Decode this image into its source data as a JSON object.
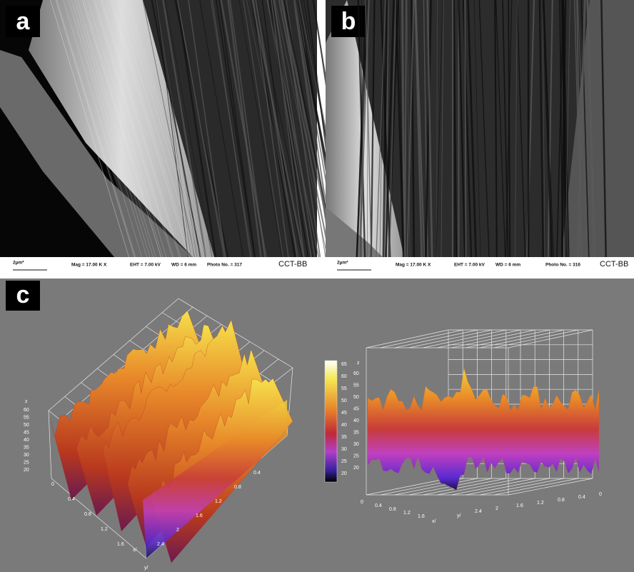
{
  "panels": [
    {
      "label": "a",
      "scale_bar": "2µm*",
      "mag": "Mag = 17.00 K X",
      "eht": "EHT = 7.00 kV",
      "wd": "WD =  6 mm",
      "photo": "Photo No. = 317",
      "lab": "CCT-BB"
    },
    {
      "label": "b",
      "scale_bar": "2µm*",
      "mag": "Mag = 17.00 K X",
      "eht": "EHT = 7.00 kV",
      "wd": "WD =  6 mm",
      "photo": "Photo No. = 316",
      "lab": "CCT-BB"
    }
  ],
  "panel_c": {
    "label": "c",
    "colorbar_ticks": [
      65,
      60,
      55,
      50,
      45,
      40,
      35,
      30,
      25,
      20
    ],
    "left_plot": {
      "z_label": "z",
      "z_ticks": [
        60,
        55,
        50,
        45,
        40,
        35,
        30,
        25,
        20
      ],
      "x_ticks": [
        "0",
        "0.4",
        "0.8",
        "1.2",
        "1.6"
      ],
      "x_label": "x/",
      "y_ticks": [
        "0.4",
        "0.8",
        "1.2",
        "1.6",
        "2",
        "2.4"
      ],
      "y_label": "y/"
    },
    "right_plot": {
      "z_label": "z",
      "z_ticks": [
        60,
        55,
        50,
        45,
        40,
        35,
        30,
        25,
        20
      ],
      "x_ticks": [
        "0",
        "0.4",
        "0.8",
        "1.2",
        "1.6"
      ],
      "x_label": "x/",
      "y_ticks": [
        "2.4",
        "2",
        "1.6",
        "1.2",
        "0.8",
        "0.4",
        "0"
      ],
      "y_label": "y/"
    }
  }
}
